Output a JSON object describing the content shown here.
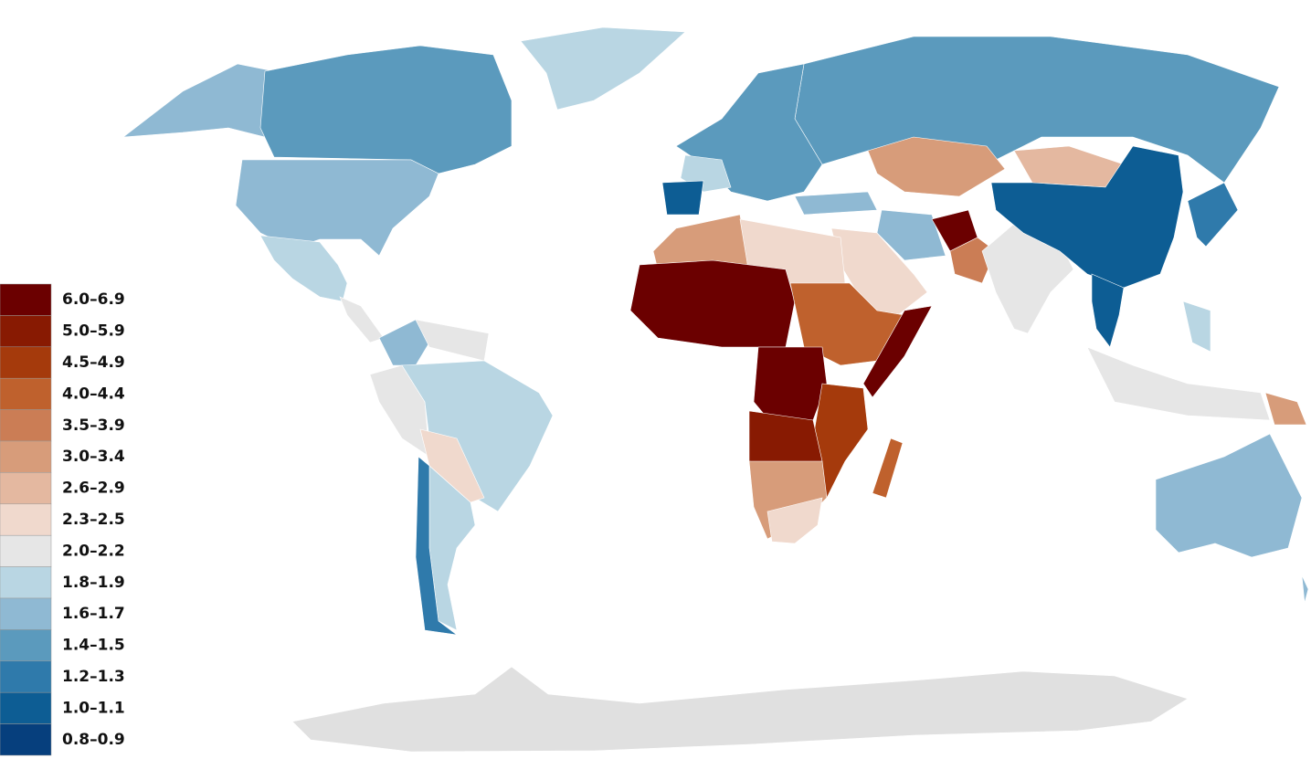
{
  "legend": {
    "items": [
      {
        "label": "6.0–6.9",
        "color": "#6b0000"
      },
      {
        "label": "5.0–5.9",
        "color": "#881a02"
      },
      {
        "label": "4.5–4.9",
        "color": "#a53a0c"
      },
      {
        "label": "4.0–4.4",
        "color": "#bf612d"
      },
      {
        "label": "3.5–3.9",
        "color": "#cb7d55"
      },
      {
        "label": "3.0–3.4",
        "color": "#d79c7a"
      },
      {
        "label": "2.6–2.9",
        "color": "#e4b8a0"
      },
      {
        "label": "2.3–2.5",
        "color": "#f0d9cd"
      },
      {
        "label": "2.0–2.2",
        "color": "#e6e6e6"
      },
      {
        "label": "1.8–1.9",
        "color": "#b9d6e3"
      },
      {
        "label": "1.6–1.7",
        "color": "#8fb9d3"
      },
      {
        "label": "1.4–1.5",
        "color": "#5b9abd"
      },
      {
        "label": "1.2–1.3",
        "color": "#2f7aab"
      },
      {
        "label": "1.0–1.1",
        "color": "#0d5d94"
      },
      {
        "label": "0.8–0.9",
        "color": "#063f7d"
      }
    ]
  }
}
